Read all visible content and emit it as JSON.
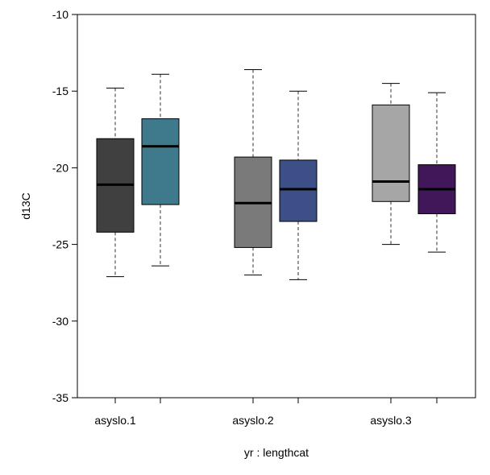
{
  "chart_data": {
    "type": "boxplot",
    "title": "",
    "xlabel": "yr : lengthcat",
    "ylabel": "d13C",
    "ylim": [
      -35,
      -10
    ],
    "yticks": [
      -35,
      -30,
      -25,
      -20,
      -15,
      -10
    ],
    "grid": false,
    "group_labels": [
      "asyslo.1",
      "asyslo.2",
      "asyslo.3"
    ],
    "boxes": [
      {
        "group": 0,
        "min": -27.1,
        "q1": -24.2,
        "median": -21.1,
        "q3": -18.1,
        "max": -14.8,
        "color": "#404040"
      },
      {
        "group": 0,
        "min": -26.4,
        "q1": -22.4,
        "median": -18.6,
        "q3": -16.8,
        "max": -13.9,
        "color": "#3e7a8c"
      },
      {
        "group": 1,
        "min": -27.0,
        "q1": -25.2,
        "median": -22.3,
        "q3": -19.3,
        "max": -13.6,
        "color": "#7a7a7a"
      },
      {
        "group": 1,
        "min": -27.3,
        "q1": -23.5,
        "median": -21.4,
        "q3": -19.5,
        "max": -15.0,
        "color": "#3c4f86"
      },
      {
        "group": 2,
        "min": -25.0,
        "q1": -22.2,
        "median": -20.9,
        "q3": -15.9,
        "max": -14.5,
        "color": "#a6a6a6"
      },
      {
        "group": 2,
        "min": -25.5,
        "q1": -23.0,
        "median": -21.4,
        "q3": -19.8,
        "max": -15.1,
        "color": "#41175a"
      }
    ]
  }
}
